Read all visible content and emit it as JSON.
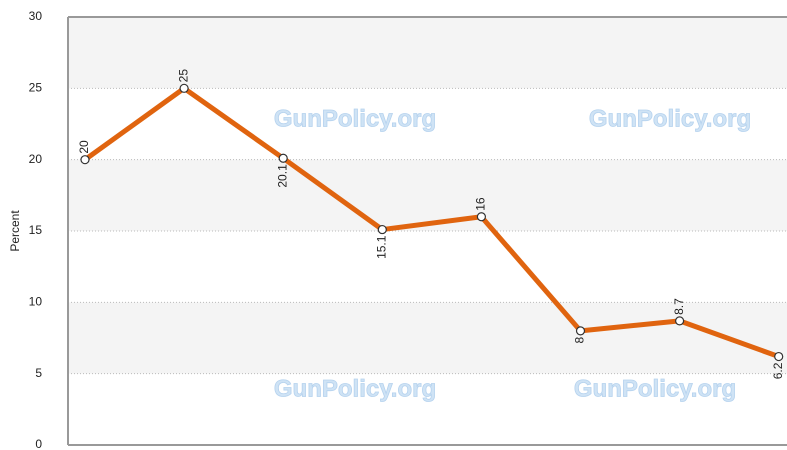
{
  "chart_data": {
    "type": "line",
    "y_label": "Percent",
    "categories": [
      null,
      null,
      null,
      null,
      null,
      null,
      null,
      null
    ],
    "series": [
      {
        "name": null,
        "color": "#e0640f",
        "values": [
          20,
          25,
          20.1,
          15.1,
          16,
          8,
          8.7,
          6.2
        ]
      }
    ],
    "ylim": [
      0,
      30
    ],
    "yticks": [
      0,
      5,
      10,
      15,
      20,
      25,
      30
    ],
    "grid": true,
    "watermarks": [
      "GunPolicy.org",
      "GunPolicy.org",
      "GunPolicy.org",
      "GunPolicy.org"
    ]
  }
}
